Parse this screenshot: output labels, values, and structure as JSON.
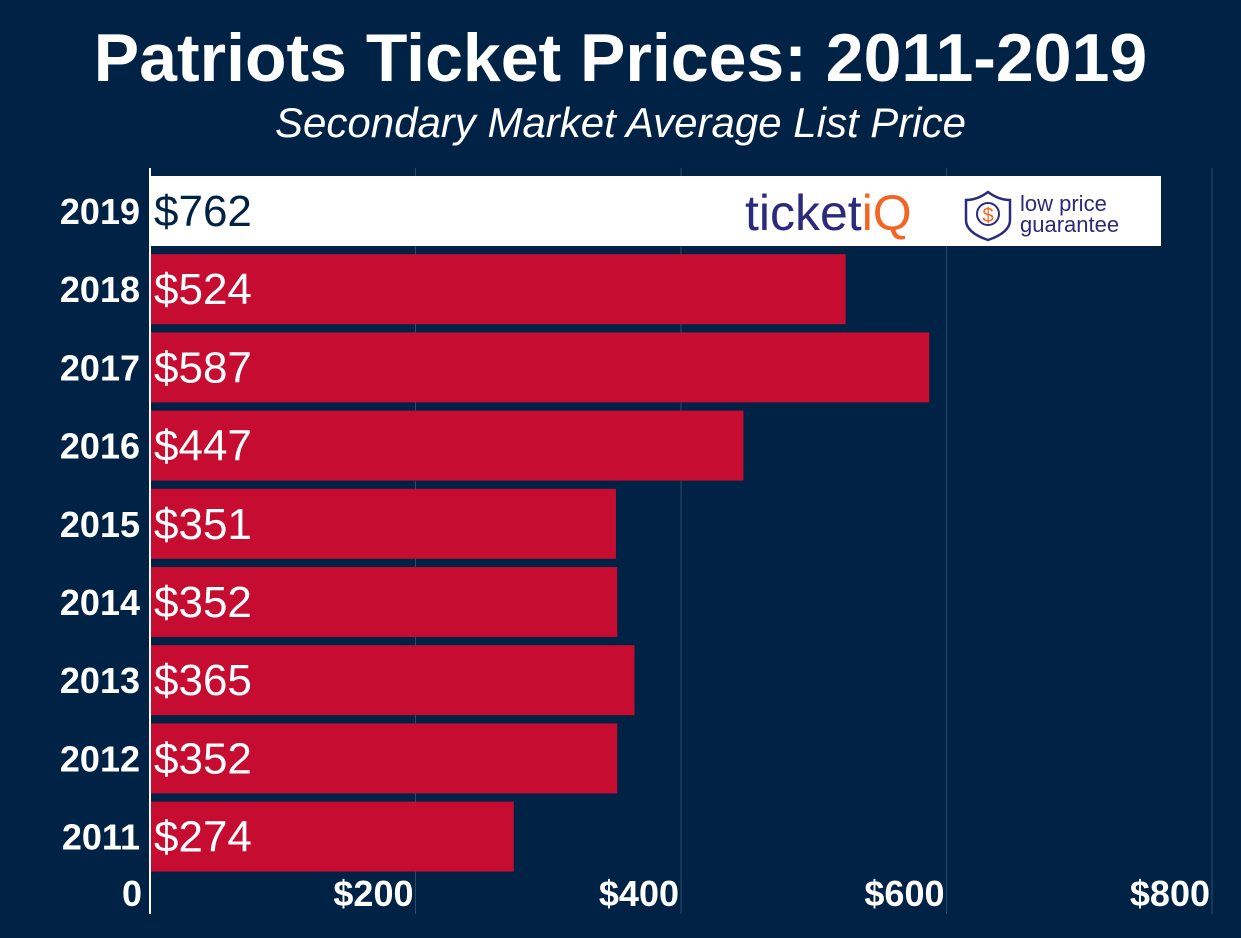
{
  "chart_data": {
    "type": "bar",
    "orientation": "horizontal",
    "title": "Patriots Ticket Prices: 2011-2019",
    "subtitle": "Secondary Market Average List Price",
    "categories": [
      "2019",
      "2018",
      "2017",
      "2016",
      "2015",
      "2014",
      "2013",
      "2012",
      "2011"
    ],
    "values": [
      762,
      524,
      587,
      447,
      351,
      352,
      365,
      352,
      274
    ],
    "value_labels": [
      "$762",
      "$524",
      "$587",
      "$447",
      "$351",
      "$352",
      "$365",
      "$352",
      "$274"
    ],
    "xlim": [
      0,
      800
    ],
    "xticks": [
      0,
      200,
      400,
      600,
      800
    ],
    "xtick_labels": [
      "0",
      "$200",
      "$400",
      "$600",
      "$800"
    ],
    "grid": true,
    "colors": {
      "background": "#002244",
      "bar": "#c60c30",
      "highlight_bar": "#ffffff",
      "highlight_label": "#002244",
      "grid": "#2e4a6b"
    }
  },
  "logo": {
    "word_main": "ticket",
    "word_accent": "iQ",
    "badge_symbol": "$",
    "tagline_line1": "low price",
    "tagline_line2": "guarantee",
    "icon": "shield-dollar-icon",
    "colors": {
      "main": "#2b2a7c",
      "accent": "#f26522"
    }
  }
}
